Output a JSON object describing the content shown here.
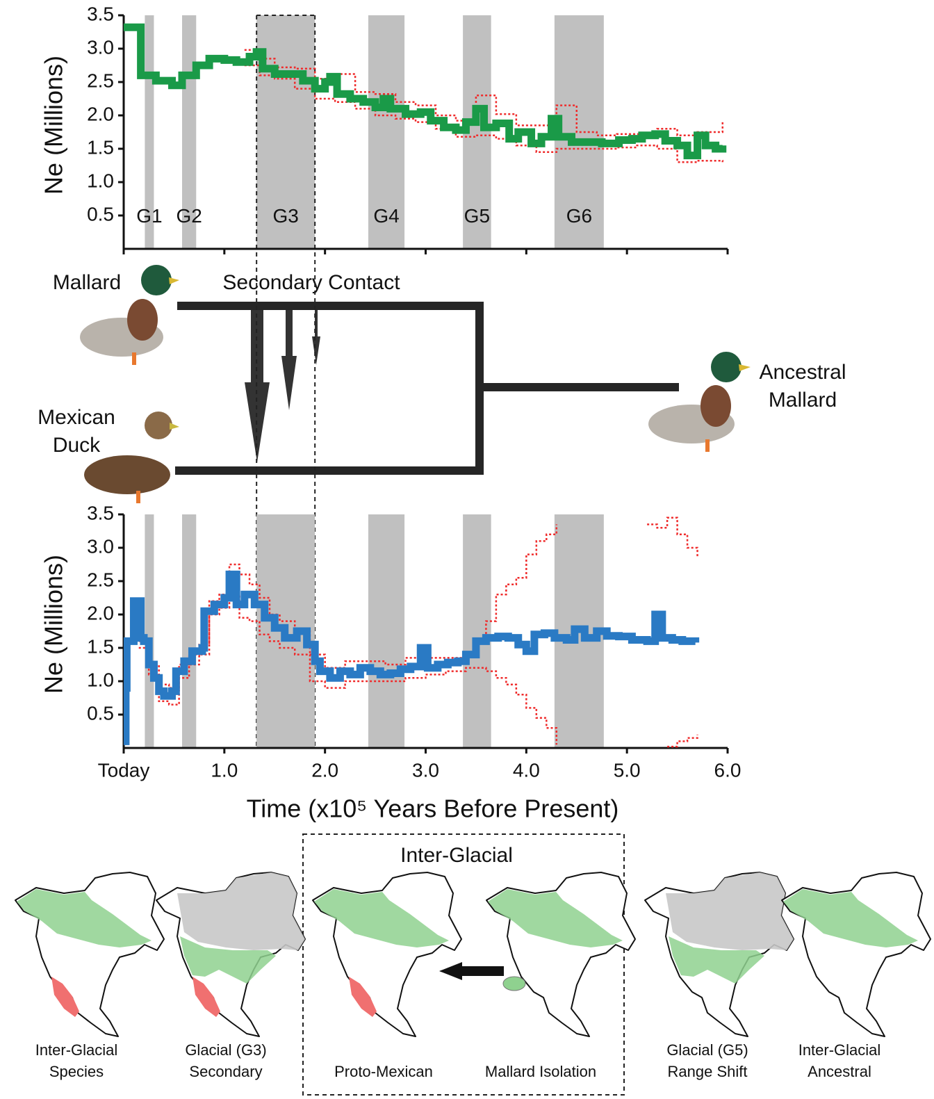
{
  "chart_data": [
    {
      "type": "line",
      "step": true,
      "ylabel": "Ne (Millions)",
      "xlim": [
        0,
        6.0
      ],
      "ylim": [
        0,
        3.5
      ],
      "xticks": [
        0,
        1,
        2,
        3,
        4,
        5,
        6
      ],
      "xtick_labels": false,
      "yticks": [
        {
          "value": 0.5,
          "label": "0.5"
        },
        {
          "value": 1,
          "label": "1.0"
        },
        1.5,
        {
          "value": 2,
          "label": "2.0"
        },
        2.5,
        {
          "value": 3,
          "label": "3.0"
        },
        3.5
      ],
      "shaded_regions": [
        {
          "label": "G1",
          "start": 0.21,
          "end": 0.3
        },
        {
          "label": "G2",
          "start": 0.58,
          "end": 0.72
        },
        {
          "label": "G3",
          "start": 1.32,
          "end": 1.9
        },
        {
          "label": "G4",
          "start": 2.43,
          "end": 2.79
        },
        {
          "label": "G5",
          "start": 3.37,
          "end": 3.65
        },
        {
          "label": "G6",
          "start": 4.28,
          "end": 4.77
        }
      ],
      "shade_color": "#c0c0c0",
      "reference_lines": [
        1.32,
        1.9
      ],
      "series": [
        {
          "color": "#ef2b2b",
          "line_style": "dotted",
          "x": [
            1.2,
            1.35,
            1.5,
            1.7,
            1.9,
            2.1,
            2.3,
            2.5,
            2.7,
            2.9,
            3.1,
            3.3,
            3.5,
            3.7,
            3.9,
            4.1,
            4.3,
            4.5,
            4.7,
            4.9,
            5.1,
            5.3,
            5.5,
            5.7,
            5.95
          ],
          "values": [
            2.98,
            2.85,
            2.72,
            2.7,
            2.55,
            2.62,
            2.35,
            2.32,
            2.2,
            2.15,
            2.0,
            1.92,
            2.3,
            2.02,
            1.85,
            1.85,
            2.15,
            1.75,
            1.7,
            1.72,
            1.72,
            1.8,
            1.7,
            1.75,
            1.9
          ]
        },
        {
          "color": "#ef2b2b",
          "line_style": "dotted",
          "x": [
            1.2,
            1.35,
            1.5,
            1.7,
            1.9,
            2.1,
            2.3,
            2.5,
            2.7,
            2.9,
            3.1,
            3.3,
            3.5,
            3.7,
            3.9,
            4.1,
            4.3,
            4.5,
            4.7,
            4.9,
            5.1,
            5.3,
            5.5,
            5.7,
            5.95
          ],
          "values": [
            2.75,
            2.6,
            2.55,
            2.4,
            2.25,
            2.2,
            2.1,
            2.0,
            1.95,
            1.9,
            1.8,
            1.68,
            1.7,
            1.65,
            1.55,
            1.45,
            1.5,
            1.5,
            1.5,
            1.52,
            1.55,
            1.5,
            1.3,
            1.32,
            1.3
          ]
        },
        {
          "color": "#1a9a48",
          "line_style": "solid",
          "x": [
            0,
            0.17,
            0.32,
            0.48,
            0.58,
            0.72,
            0.85,
            1.0,
            1.12,
            1.25,
            1.32,
            1.38,
            1.5,
            1.65,
            1.78,
            1.9,
            2.0,
            2.05,
            2.12,
            2.25,
            2.38,
            2.5,
            2.58,
            2.65,
            2.8,
            2.95,
            3.05,
            3.18,
            3.3,
            3.4,
            3.5,
            3.58,
            3.7,
            3.83,
            3.92,
            4.05,
            4.15,
            4.25,
            4.32,
            4.45,
            4.6,
            4.75,
            4.92,
            5.05,
            5.15,
            5.28,
            5.38,
            5.5,
            5.6,
            5.7,
            5.78,
            5.88,
            5.95
          ],
          "values": [
            3.32,
            2.6,
            2.52,
            2.45,
            2.6,
            2.75,
            2.85,
            2.83,
            2.8,
            2.88,
            2.95,
            2.7,
            2.62,
            2.62,
            2.52,
            2.4,
            2.5,
            2.58,
            2.32,
            2.25,
            2.2,
            2.12,
            2.25,
            2.1,
            2.02,
            2.05,
            1.92,
            1.82,
            1.78,
            1.9,
            2.1,
            1.82,
            1.88,
            1.65,
            1.75,
            1.58,
            1.68,
            1.95,
            1.68,
            1.6,
            1.6,
            1.58,
            1.63,
            1.65,
            1.7,
            1.72,
            1.62,
            1.55,
            1.4,
            1.7,
            1.55,
            1.5,
            1.55
          ]
        }
      ]
    },
    {
      "type": "line",
      "step": true,
      "ylabel": "Ne (Millions)",
      "xlabel": "Time (x10⁵ Years Before Present)",
      "xlim": [
        0,
        6.0
      ],
      "ylim": [
        0,
        3.5
      ],
      "xticks": [
        {
          "value": 0,
          "label": "Today"
        },
        {
          "value": 1,
          "label": "1.0"
        },
        {
          "value": 2,
          "label": "2.0"
        },
        {
          "value": 3,
          "label": "3.0"
        },
        {
          "value": 4,
          "label": "4.0"
        },
        {
          "value": 5,
          "label": "5.0"
        },
        {
          "value": 6,
          "label": "6.0"
        }
      ],
      "yticks": [
        {
          "value": 0.5,
          "label": "0.5"
        },
        {
          "value": 1,
          "label": "1.0"
        },
        1.5,
        {
          "value": 2,
          "label": "2.0"
        },
        2.5,
        {
          "value": 3,
          "label": "3.0"
        },
        3.5
      ],
      "shaded_regions": [
        {
          "start": 0.21,
          "end": 0.3
        },
        {
          "start": 0.58,
          "end": 0.72
        },
        {
          "start": 1.32,
          "end": 1.9
        },
        {
          "start": 2.43,
          "end": 2.79
        },
        {
          "start": 3.37,
          "end": 3.65
        },
        {
          "start": 4.28,
          "end": 4.77
        }
      ],
      "shade_color": "#c0c0c0",
      "series": [
        {
          "color": "#ef2b2b",
          "line_style": "dotted",
          "x": [
            0.15,
            0.25,
            0.35,
            0.45,
            0.55,
            0.65,
            0.75,
            0.85,
            0.95,
            1.05,
            1.15,
            1.25,
            1.35,
            1.45,
            1.55,
            1.7,
            1.85,
            2.0,
            2.2,
            2.4,
            2.6,
            2.8,
            3.0,
            3.2,
            3.4,
            3.5,
            3.6,
            3.7,
            3.8,
            3.9,
            4.0,
            4.1,
            4.2,
            4.3,
            4.5,
            5.2,
            5.3,
            5.4,
            5.5,
            5.6,
            5.7
          ],
          "values": [
            1.5,
            1.25,
            0.95,
            0.9,
            1.25,
            1.4,
            1.55,
            2.2,
            2.3,
            2.75,
            2.6,
            2.45,
            2.25,
            2.0,
            1.9,
            1.75,
            1.4,
            1.2,
            1.3,
            1.3,
            1.25,
            1.35,
            1.35,
            1.35,
            1.4,
            1.6,
            1.9,
            2.3,
            2.45,
            2.55,
            2.9,
            3.1,
            3.2,
            3.35,
            null,
            3.35,
            3.3,
            3.45,
            3.2,
            3.0,
            2.85
          ]
        },
        {
          "color": "#ef2b2b",
          "line_style": "dotted",
          "x": [
            0.15,
            0.25,
            0.35,
            0.45,
            0.55,
            0.65,
            0.75,
            0.85,
            0.95,
            1.05,
            1.15,
            1.25,
            1.35,
            1.45,
            1.55,
            1.7,
            1.85,
            2.0,
            2.2,
            2.4,
            2.6,
            2.8,
            3.0,
            3.2,
            3.4,
            3.5,
            3.6,
            3.7,
            3.8,
            3.9,
            4.0,
            4.1,
            4.2,
            4.3,
            4.5,
            5.4,
            5.5,
            5.6,
            5.7
          ],
          "values": [
            1.6,
            1.1,
            0.7,
            0.65,
            1.05,
            1.25,
            1.4,
            2.0,
            2.1,
            2.3,
            1.95,
            1.9,
            1.7,
            1.6,
            1.5,
            1.4,
            1.0,
            0.9,
            1.0,
            1.0,
            1.0,
            1.05,
            1.1,
            1.15,
            1.2,
            1.2,
            1.15,
            1.05,
            0.95,
            0.8,
            0.6,
            0.45,
            0.3,
            0.05,
            null,
            0.02,
            0.1,
            0.15,
            0.2
          ]
        },
        {
          "color": "#2a7ac4",
          "line_style": "solid",
          "x": [
            0,
            0.02,
            0.03,
            0.1,
            0.17,
            0.2,
            0.25,
            0.3,
            0.35,
            0.4,
            0.48,
            0.52,
            0.6,
            0.68,
            0.78,
            0.8,
            0.9,
            1.0,
            1.05,
            1.12,
            1.2,
            1.3,
            1.4,
            1.5,
            1.6,
            1.72,
            1.82,
            1.9,
            1.95,
            2.05,
            2.15,
            2.25,
            2.35,
            2.45,
            2.55,
            2.65,
            2.75,
            2.85,
            2.95,
            3.02,
            3.12,
            3.22,
            3.32,
            3.4,
            3.5,
            3.6,
            3.72,
            3.82,
            3.92,
            4.0,
            4.08,
            4.18,
            4.28,
            4.4,
            4.48,
            4.58,
            4.7,
            4.8,
            4.92,
            5.05,
            5.2,
            5.28,
            5.35,
            5.45,
            5.55,
            5.62,
            5.68
          ],
          "values": [
            0.1,
            0.9,
            1.6,
            2.2,
            1.65,
            1.6,
            1.25,
            1.05,
            0.85,
            0.78,
            0.85,
            1.15,
            1.3,
            1.45,
            1.5,
            2.05,
            2.15,
            2.25,
            2.6,
            2.15,
            2.3,
            2.15,
            1.95,
            1.8,
            1.65,
            1.75,
            1.55,
            1.3,
            1.15,
            1.05,
            1.15,
            1.1,
            1.2,
            1.15,
            1.1,
            1.12,
            1.18,
            1.22,
            1.5,
            1.2,
            1.25,
            1.28,
            1.3,
            1.4,
            1.6,
            1.65,
            1.67,
            1.65,
            1.55,
            1.45,
            1.7,
            1.72,
            1.65,
            1.62,
            1.78,
            1.65,
            1.75,
            1.68,
            1.67,
            1.62,
            1.6,
            2.0,
            1.65,
            1.62,
            1.6,
            1.6,
            1.58
          ]
        }
      ]
    }
  ],
  "diagram": {
    "mallard": "Mallard",
    "secondary_contact": "Secondary Contact",
    "mexican_duck": [
      "Mexican",
      "Duck"
    ],
    "ancestral_mallard": [
      "Ancestral",
      "Mallard"
    ]
  },
  "maps": {
    "title": "Inter-Glacial",
    "captions": [
      [
        "Inter-Glacial",
        "Species"
      ],
      [
        "Glacial (G3)",
        "Secondary"
      ],
      [
        "Proto-Mexican"
      ],
      [
        "Mallard Isolation"
      ],
      [
        "Glacial (G5)",
        "Range Shift"
      ],
      [
        "Inter-Glacial",
        "Ancestral"
      ]
    ]
  }
}
